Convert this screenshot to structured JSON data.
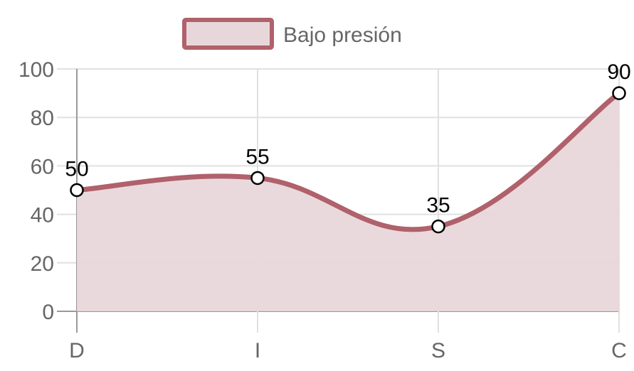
{
  "chart_data": {
    "type": "area",
    "categories": [
      "D",
      "I",
      "S",
      "C"
    ],
    "series": [
      {
        "name": "Bajo presión",
        "values": [
          50,
          55,
          35,
          90
        ],
        "line_color": "#b0616b",
        "fill_color": "#e8d7da"
      }
    ],
    "ylim": [
      0,
      100
    ],
    "yticks": [
      "0",
      "20",
      "40",
      "60",
      "80",
      "100"
    ],
    "data_labels": [
      "50",
      "55",
      "35",
      "90"
    ],
    "grid": true,
    "legend_position": "top",
    "smooth": true
  }
}
